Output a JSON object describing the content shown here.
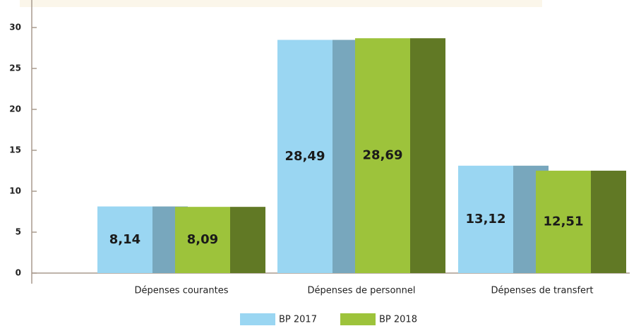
{
  "chart_data": {
    "type": "bar",
    "categories": [
      "Dépenses courantes",
      "Dépenses de personnel",
      "Dépenses de transfert"
    ],
    "series": [
      {
        "name": "BP 2017",
        "color": "#9ad6f2",
        "values": [
          8.14,
          28.49,
          13.12
        ],
        "value_labels": [
          "8,14",
          "28,49",
          "13,12"
        ]
      },
      {
        "name": "BP 2018",
        "color": "#9dc33b",
        "values": [
          8.09,
          28.69,
          12.51
        ],
        "value_labels": [
          "8,09",
          "28,69",
          "12,51"
        ]
      }
    ],
    "ylim": [
      0,
      30
    ],
    "yticks": [
      0,
      5,
      10,
      15,
      20,
      25,
      30
    ],
    "legend": "bottom"
  }
}
